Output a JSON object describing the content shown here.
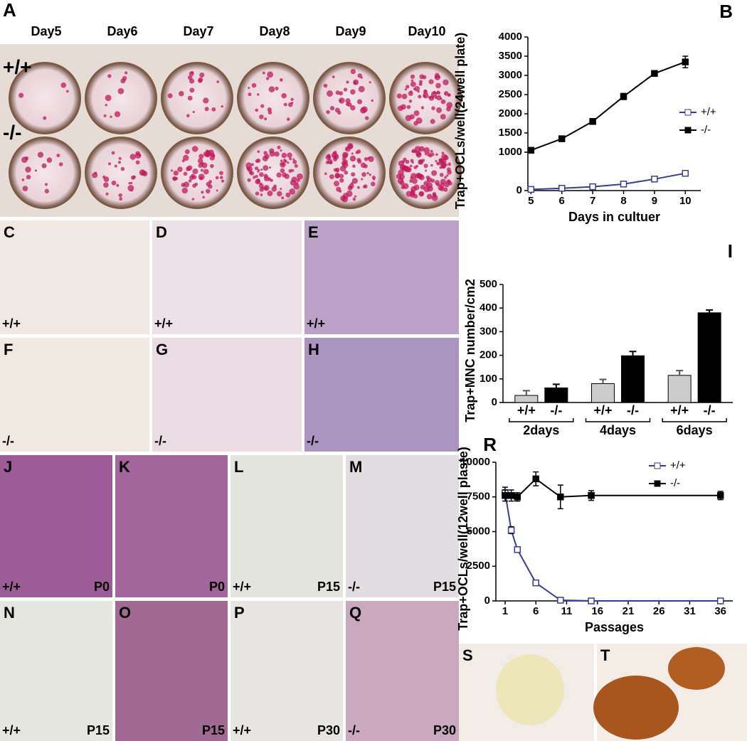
{
  "figure": {
    "plate": {
      "letter": "A",
      "days": [
        "Day5",
        "Day6",
        "Day7",
        "Day8",
        "Day9",
        "Day10"
      ],
      "rows": [
        "+/+",
        "-/-"
      ]
    },
    "panels": [
      {
        "letter": "C",
        "genotype": "+/+"
      },
      {
        "letter": "D",
        "genotype": "+/+"
      },
      {
        "letter": "E",
        "genotype": "+/+"
      },
      {
        "letter": "F",
        "genotype": "-/-"
      },
      {
        "letter": "G",
        "genotype": "-/-"
      },
      {
        "letter": "H",
        "genotype": "-/-"
      },
      {
        "letter": "J",
        "genotype": "+/+",
        "passage": "P0"
      },
      {
        "letter": "K",
        "passage": "P0"
      },
      {
        "letter": "L",
        "genotype": "+/+",
        "passage": "P15"
      },
      {
        "letter": "M",
        "genotype": "-/-",
        "passage": "P15"
      },
      {
        "letter": "N",
        "genotype": "+/+",
        "passage": "P15"
      },
      {
        "letter": "O",
        "passage": "P15"
      },
      {
        "letter": "P",
        "genotype": "+/+",
        "passage": "P30"
      },
      {
        "letter": "Q",
        "genotype": "-/-",
        "passage": "P30"
      },
      {
        "letter": "S"
      },
      {
        "letter": "T"
      }
    ]
  },
  "chart_data": [
    {
      "type": "line",
      "letter": "B",
      "ylabel": "Trap+OCLs/well(24well plate)",
      "xlabel": "Days in cultuer",
      "x": [
        5,
        6,
        7,
        8,
        9,
        10
      ],
      "xlim": [
        4.9,
        10.5
      ],
      "xticks": [
        5,
        6,
        7,
        8,
        9,
        10
      ],
      "ylim": [
        0,
        4000
      ],
      "yticks": [
        0,
        1000,
        1500,
        2000,
        2500,
        3000,
        3500,
        4000
      ],
      "legend": "right",
      "series": [
        {
          "name": "+/+",
          "color": "#3a3a9a",
          "marker": "open",
          "values": [
            30,
            60,
            100,
            170,
            300,
            450
          ],
          "errors": [
            20,
            20,
            20,
            20,
            30,
            30
          ]
        },
        {
          "name": "-/-",
          "color": "#000000",
          "marker": "filled",
          "values": [
            1050,
            1350,
            1800,
            2450,
            3050,
            3350
          ],
          "errors": [
            50,
            50,
            50,
            80,
            60,
            150
          ]
        }
      ]
    },
    {
      "type": "bar",
      "letter": "I",
      "ylabel": "Trap+MNC number/cm2",
      "categories": [
        "2days",
        "4days",
        "6days"
      ],
      "ylim": [
        0,
        500
      ],
      "yticks": [
        0,
        100,
        200,
        300,
        400,
        500
      ],
      "series": [
        {
          "name": "+/+",
          "color": "#cccccc",
          "values": [
            30,
            80,
            115
          ],
          "errors": [
            20,
            18,
            20
          ]
        },
        {
          "name": "-/-",
          "color": "#000000",
          "values": [
            62,
            198,
            380
          ],
          "errors": [
            15,
            18,
            12
          ]
        }
      ]
    },
    {
      "type": "line",
      "letter": "R",
      "ylabel": "Trap+OCLs/well(12well plaste)",
      "xlabel": "Passages",
      "x": [
        1,
        2,
        3,
        6,
        10,
        15,
        36
      ],
      "xlim": [
        -0.5,
        38
      ],
      "xticks": [
        1,
        6,
        11,
        16,
        21,
        26,
        31,
        36
      ],
      "ylim": [
        0,
        10000
      ],
      "yticks": [
        0,
        2500,
        5000,
        7500,
        10000
      ],
      "legend": "top-right",
      "series": [
        {
          "name": "+/+",
          "color": "#3a3a9a",
          "marker": "open",
          "values": [
            7800,
            5100,
            3700,
            1300,
            50,
            0,
            0
          ],
          "errors": [
            400,
            250,
            150,
            80,
            50,
            50,
            50
          ]
        },
        {
          "name": "-/-",
          "color": "#000000",
          "marker": "filled",
          "values": [
            7600,
            7600,
            7500,
            8800,
            7500,
            7600,
            7600
          ],
          "errors": [
            400,
            400,
            300,
            500,
            850,
            350,
            300
          ]
        }
      ]
    }
  ]
}
